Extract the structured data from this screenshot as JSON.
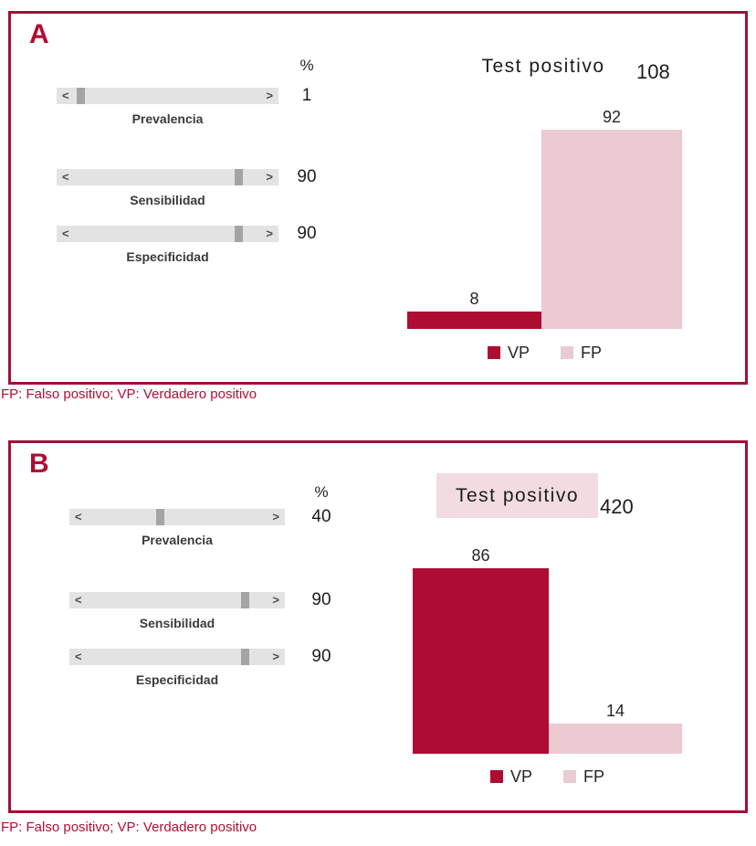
{
  "colors": {
    "accent": "#A50E36",
    "vp": "#AE0C32",
    "fp": "#EBCAD2",
    "highlight_box": "#F2DCE1",
    "slider_track": "#E4E3E3",
    "slider_thumb": "#A5A4A4"
  },
  "icons": {
    "slider_arrow_left": "<",
    "slider_arrow_right": ">"
  },
  "panels": [
    {
      "label": "A",
      "unit_header": "%",
      "sliders": [
        {
          "name": "Prevalencia",
          "value": 1
        },
        {
          "name": "Sensibilidad",
          "value": 90
        },
        {
          "name": "Especificidad",
          "value": 90
        }
      ]
    },
    {
      "label": "B",
      "unit_header": "%",
      "sliders": [
        {
          "name": "Prevalencia",
          "value": 40
        },
        {
          "name": "Sensibilidad",
          "value": 90
        },
        {
          "name": "Especificidad",
          "value": 90
        }
      ]
    }
  ],
  "chart_data": [
    {
      "type": "bar",
      "panel": "A",
      "title": "Test positivo",
      "title_highlighted": false,
      "total_label": "108",
      "categories": [
        "VP",
        "FP"
      ],
      "values": [
        8,
        92
      ],
      "ylim": [
        0,
        100
      ],
      "grid": false,
      "legend_position": "bottom",
      "bar_colors": [
        "#AE0C32",
        "#EBCAD2"
      ],
      "inputs_percent": {
        "Prevalencia": 1,
        "Sensibilidad": 90,
        "Especificidad": 90
      }
    },
    {
      "type": "bar",
      "panel": "B",
      "title": "Test positivo",
      "title_highlighted": true,
      "total_label": "420",
      "categories": [
        "VP",
        "FP"
      ],
      "values": [
        86,
        14
      ],
      "ylim": [
        0,
        100
      ],
      "grid": false,
      "legend_position": "bottom",
      "bar_colors": [
        "#AE0C32",
        "#EBCAD2"
      ],
      "inputs_percent": {
        "Prevalencia": 40,
        "Sensibilidad": 90,
        "Especificidad": 90
      }
    }
  ],
  "footnotes": [
    "FP: Falso positivo; VP: Verdadero positivo",
    "FP: Falso positivo; VP: Verdadero positivo"
  ]
}
